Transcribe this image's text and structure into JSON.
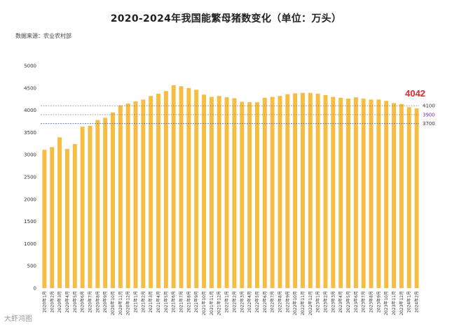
{
  "title": "2020-2024年我国能繁母猪数变化（单位：万头）",
  "source": "数据来源：农业农村部",
  "watermark": "大虾鸿图",
  "chart_data": {
    "type": "bar",
    "title": "2020-2024年我国能繁母猪数变化（单位：万头）",
    "xlabel": "",
    "ylabel": "",
    "ylim": [
      0,
      5000
    ],
    "yticks": [
      0,
      500,
      1000,
      1500,
      2000,
      2500,
      3000,
      3500,
      4000,
      4500,
      5000
    ],
    "grid": false,
    "bar_color": "#f5bd41",
    "categories": [
      "2020年1月",
      "2020年2月",
      "2020年3月",
      "2020年4月",
      "2020年5月",
      "2020年6月",
      "2020年7月",
      "2020年8月",
      "2020年9月",
      "2020年10月",
      "2020年11月",
      "2020年12月",
      "2021年1月",
      "2021年2月",
      "2021年3月",
      "2021年4月",
      "2021年5月",
      "2021年6月",
      "2021年7月",
      "2021年8月",
      "2021年9月",
      "2021年10月",
      "2021年11月",
      "2021年12月",
      "2022年1月",
      "2022年2月",
      "2022年3月",
      "2022年4月",
      "2022年5月",
      "2022年6月",
      "2022年7月",
      "2022年8月",
      "2022年9月",
      "2022年10月",
      "2022年11月",
      "2022年12月",
      "2023年1月",
      "2023年2月",
      "2023年3月",
      "2023年4月",
      "2023年5月",
      "2023年6月",
      "2023年7月",
      "2023年8月",
      "2023年9月",
      "2023年10月",
      "2023年11月",
      "2023年12月",
      "2024年1月",
      "2024年2月"
    ],
    "values": [
      3110,
      3170,
      3390,
      3130,
      3240,
      3630,
      3650,
      3780,
      3830,
      3950,
      4110,
      4150,
      4200,
      4240,
      4320,
      4370,
      4430,
      4560,
      4540,
      4500,
      4460,
      4350,
      4300,
      4320,
      4290,
      4270,
      4190,
      4180,
      4180,
      4280,
      4300,
      4320,
      4360,
      4380,
      4390,
      4390,
      4370,
      4340,
      4300,
      4280,
      4260,
      4290,
      4260,
      4240,
      4240,
      4210,
      4160,
      4140,
      4070,
      4042
    ],
    "highlight": {
      "label": "4042",
      "color": "#e3262b"
    },
    "reference_lines": [
      {
        "value": 4100,
        "label": "4100",
        "color": "#6f8fc8",
        "label_color": "#333333"
      },
      {
        "value": 3900,
        "label": "3900",
        "color": "#9a9a9a",
        "label_color": "#7a2aa8"
      },
      {
        "value": 3700,
        "label": "3700",
        "color": "#4a6fae",
        "label_color": "#333333"
      }
    ]
  }
}
